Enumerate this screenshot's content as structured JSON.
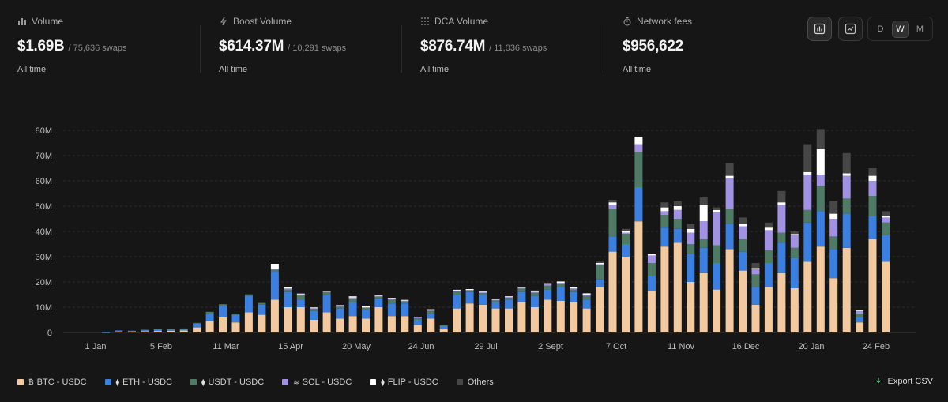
{
  "stats": [
    {
      "label": "Volume",
      "value": "$1.69B",
      "sub": "/ 75,636 swaps",
      "period": "All time",
      "icon": "bars-icon"
    },
    {
      "label": "Boost Volume",
      "value": "$614.37M",
      "sub": "/ 10,291 swaps",
      "period": "All time",
      "icon": "bolt-icon"
    },
    {
      "label": "DCA Volume",
      "value": "$876.74M",
      "sub": "/ 11,036 swaps",
      "period": "All time",
      "icon": "dots-grid-icon"
    },
    {
      "label": "Network fees",
      "value": "$956,622",
      "sub": "",
      "period": "All time",
      "icon": "timer-icon"
    }
  ],
  "controls": {
    "granularity": [
      "D",
      "W",
      "M"
    ],
    "selected_granularity": "W"
  },
  "export_label": "Export CSV",
  "colors": {
    "BTC": "#f3c9a0",
    "ETH": "#3b7fe0",
    "USDT": "#4e7a66",
    "SOL": "#a292e3",
    "FLIP": "#ffffff",
    "Others": "#474747",
    "background": "#161616",
    "grid": "#2e2e2e"
  },
  "chart_data": {
    "type": "bar",
    "stacked": true,
    "x_ticks": [
      "1 Jan",
      "5 Feb",
      "11 Mar",
      "15 Apr",
      "20 May",
      "24 Jun",
      "29 Jul",
      "2 Sept",
      "7 Oct",
      "11 Nov",
      "16 Dec",
      "20 Jan",
      "24 Feb"
    ],
    "y_ticks": [
      "0",
      "10M",
      "20M",
      "30M",
      "40M",
      "50M",
      "60M",
      "70M",
      "80M"
    ],
    "ylim": [
      0,
      88
    ],
    "grid": true,
    "legend_position": "bottom",
    "series": [
      {
        "name": "BTC - USDC",
        "token": "₿",
        "color": "#f3c9a0",
        "values": [
          0.1,
          0.3,
          0.4,
          0.5,
          0.6,
          0.7,
          0.8,
          2,
          4.5,
          6,
          4,
          8,
          7,
          13,
          10,
          10,
          5,
          8,
          5.5,
          6.5,
          5.5,
          10,
          6.5,
          6.5,
          3,
          5.5,
          1.5,
          9.5,
          11.5,
          11,
          9.5,
          9.5,
          12,
          10,
          13,
          12.5,
          12,
          9.5,
          18,
          32,
          30,
          44,
          16.5,
          34,
          35.5,
          20,
          23.5,
          17,
          33,
          24.5,
          11,
          18,
          23.5,
          17.5,
          28,
          34,
          21.5,
          33.5,
          4,
          37,
          28
        ]
      },
      {
        "name": "ETH - USDC",
        "token": "⧫",
        "color": "#3b7fe0",
        "values": [
          0.1,
          0.5,
          0.3,
          0.5,
          0.7,
          0.6,
          0.7,
          1.5,
          3,
          4.5,
          3,
          6.5,
          4,
          11,
          6,
          2.8,
          3.5,
          7,
          4,
          5.5,
          3.5,
          3.5,
          5,
          5,
          2,
          1.8,
          1,
          5.5,
          4.5,
          4,
          2.5,
          3.5,
          4,
          4.5,
          4,
          5.5,
          4,
          3.5,
          3,
          6,
          5,
          13.5,
          6,
          7.5,
          5.5,
          11,
          10,
          10.5,
          10,
          7.5,
          7,
          9.5,
          12,
          12,
          15.5,
          14,
          11.5,
          13.5,
          2,
          9,
          10.5
        ]
      },
      {
        "name": "USDT - USDC",
        "token": "⧫",
        "color": "#4e7a66",
        "values": [
          0,
          0,
          0,
          0.1,
          0.1,
          0.1,
          0.1,
          0.3,
          0.7,
          0.7,
          0.5,
          0.6,
          0.7,
          0.9,
          1,
          2,
          0.9,
          0.9,
          0.7,
          1.3,
          0.7,
          0.7,
          1.5,
          0.8,
          0.7,
          1.2,
          0.4,
          1.3,
          0.6,
          0.6,
          0.7,
          0.7,
          1.4,
          1.2,
          1.5,
          1.2,
          1,
          1.5,
          5.5,
          11,
          4,
          14,
          5,
          5,
          4,
          4,
          3.5,
          7,
          6,
          5,
          5,
          5,
          4,
          4,
          5,
          10,
          5,
          6,
          1.5,
          8,
          5
        ]
      },
      {
        "name": "SOL - USDC",
        "token": "≋",
        "color": "#a292e3",
        "values": [
          0,
          0,
          0,
          0,
          0,
          0,
          0,
          0,
          0,
          0,
          0,
          0,
          0,
          0.3,
          0.4,
          0.3,
          0.2,
          0.3,
          0.3,
          0.5,
          0.3,
          0.3,
          0.4,
          0.3,
          0.3,
          0.4,
          0,
          0.3,
          0.3,
          0.3,
          0.3,
          0.3,
          0.3,
          0.4,
          0.5,
          0.5,
          0.5,
          0.5,
          0.5,
          1.5,
          0.5,
          3,
          3,
          1.5,
          3.5,
          4.5,
          7,
          13,
          12,
          5,
          2,
          8,
          11,
          5,
          14,
          4.5,
          7,
          9,
          1,
          6,
          2
        ]
      },
      {
        "name": "FLIP - USDC",
        "token": "⧫",
        "color": "#ffffff",
        "values": [
          0,
          0,
          0,
          0,
          0,
          0,
          0,
          0,
          0,
          0,
          0,
          0,
          0,
          2,
          0.5,
          0.3,
          0.3,
          0.3,
          0.3,
          0.5,
          0.3,
          0.3,
          0.3,
          0.3,
          0.2,
          0.3,
          0,
          0.3,
          0.3,
          0.3,
          0.3,
          0.3,
          0.3,
          0.5,
          0.5,
          0.5,
          0.5,
          0.5,
          0.5,
          1,
          0.5,
          3,
          0.5,
          1.5,
          1.5,
          1.5,
          6.5,
          1,
          1,
          1,
          0.5,
          1,
          1,
          0.5,
          1,
          10,
          2,
          1,
          0.5,
          2,
          0.5
        ]
      },
      {
        "name": "Others",
        "token": "",
        "color": "#474747",
        "values": [
          0,
          0,
          0,
          0,
          0,
          0,
          0,
          0,
          0,
          0,
          0,
          0,
          0,
          0,
          0,
          0,
          0,
          0,
          0,
          0,
          0,
          0,
          0,
          0,
          0,
          0,
          0,
          0,
          0,
          0,
          0,
          0,
          0,
          0,
          0,
          0,
          0,
          0,
          0.5,
          1,
          1,
          0,
          0,
          2,
          2,
          2,
          3,
          1,
          5,
          2.5,
          2,
          2,
          4.5,
          1,
          11,
          8,
          5,
          8,
          0,
          3,
          2
        ]
      }
    ]
  }
}
